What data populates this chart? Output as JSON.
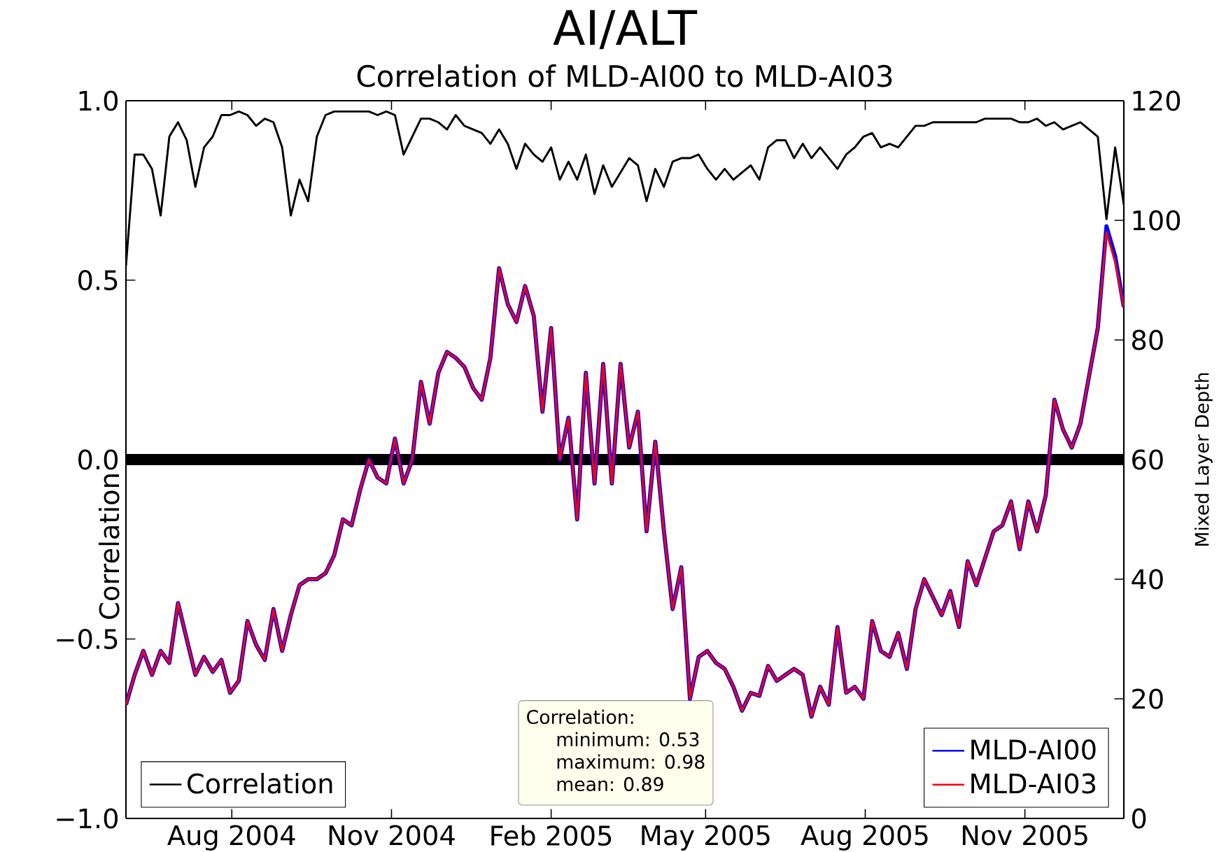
{
  "chart_data": {
    "type": "line",
    "title": "AI/ALT",
    "subtitle": "Correlation of MLD-AI00 to MLD-AI03",
    "ylabel": "Correlation",
    "y2label": "Mixed Layer Depth",
    "x": [
      "2004-06-01",
      "2004-06-06",
      "2004-06-11",
      "2004-06-16",
      "2004-06-21",
      "2004-06-26",
      "2004-07-01",
      "2004-07-06",
      "2004-07-11",
      "2004-07-16",
      "2004-07-21",
      "2004-07-26",
      "2004-07-31",
      "2004-08-05",
      "2004-08-10",
      "2004-08-15",
      "2004-08-20",
      "2004-08-25",
      "2004-08-30",
      "2004-09-04",
      "2004-09-09",
      "2004-09-14",
      "2004-09-19",
      "2004-09-24",
      "2004-09-29",
      "2004-10-04",
      "2004-10-09",
      "2004-10-14",
      "2004-10-19",
      "2004-10-24",
      "2004-10-29",
      "2004-11-03",
      "2004-11-08",
      "2004-11-13",
      "2004-11-18",
      "2004-11-23",
      "2004-11-28",
      "2004-12-03",
      "2004-12-08",
      "2004-12-13",
      "2004-12-18",
      "2004-12-23",
      "2004-12-28",
      "2005-01-02",
      "2005-01-07",
      "2005-01-12",
      "2005-01-17",
      "2005-01-22",
      "2005-01-27",
      "2005-02-01",
      "2005-02-06",
      "2005-02-11",
      "2005-02-16",
      "2005-02-21",
      "2005-02-26",
      "2005-03-03",
      "2005-03-08",
      "2005-03-13",
      "2005-03-18",
      "2005-03-23",
      "2005-03-28",
      "2005-04-02",
      "2005-04-07",
      "2005-04-12",
      "2005-04-17",
      "2005-04-22",
      "2005-04-27",
      "2005-05-02",
      "2005-05-07",
      "2005-05-12",
      "2005-05-17",
      "2005-05-22",
      "2005-05-27",
      "2005-06-01",
      "2005-06-06",
      "2005-06-11",
      "2005-06-16",
      "2005-06-21",
      "2005-06-26",
      "2005-07-01",
      "2005-07-06",
      "2005-07-11",
      "2005-07-16",
      "2005-07-21",
      "2005-07-26",
      "2005-07-31",
      "2005-08-05",
      "2005-08-10",
      "2005-08-15",
      "2005-08-20",
      "2005-08-25",
      "2005-08-30",
      "2005-09-04",
      "2005-09-09",
      "2005-09-14",
      "2005-09-19",
      "2005-09-24",
      "2005-09-29",
      "2005-10-04",
      "2005-10-09",
      "2005-10-14",
      "2005-10-19",
      "2005-10-24",
      "2005-10-29",
      "2005-11-03",
      "2005-11-08",
      "2005-11-13",
      "2005-11-18",
      "2005-11-23",
      "2005-11-28",
      "2005-12-03",
      "2005-12-08",
      "2005-12-13",
      "2005-12-18",
      "2005-12-23",
      "2005-12-28"
    ],
    "series": [
      {
        "name": "Correlation",
        "color": "#000000",
        "axis": "y",
        "values": [
          0.54,
          0.85,
          0.85,
          0.81,
          0.68,
          0.9,
          0.94,
          0.89,
          0.76,
          0.87,
          0.9,
          0.96,
          0.96,
          0.97,
          0.96,
          0.93,
          0.95,
          0.94,
          0.87,
          0.68,
          0.78,
          0.72,
          0.9,
          0.96,
          0.97,
          0.97,
          0.97,
          0.97,
          0.97,
          0.96,
          0.97,
          0.96,
          0.85,
          0.9,
          0.95,
          0.95,
          0.94,
          0.92,
          0.96,
          0.93,
          0.92,
          0.91,
          0.88,
          0.92,
          0.88,
          0.81,
          0.88,
          0.85,
          0.83,
          0.87,
          0.78,
          0.83,
          0.78,
          0.85,
          0.74,
          0.82,
          0.76,
          0.8,
          0.84,
          0.82,
          0.72,
          0.81,
          0.76,
          0.83,
          0.84,
          0.84,
          0.85,
          0.81,
          0.78,
          0.81,
          0.78,
          0.8,
          0.82,
          0.78,
          0.87,
          0.89,
          0.89,
          0.84,
          0.88,
          0.84,
          0.87,
          0.84,
          0.81,
          0.85,
          0.87,
          0.9,
          0.91,
          0.87,
          0.88,
          0.87,
          0.9,
          0.93,
          0.93,
          0.94,
          0.94,
          0.94,
          0.94,
          0.94,
          0.94,
          0.95,
          0.95,
          0.95,
          0.95,
          0.94,
          0.94,
          0.95,
          0.93,
          0.94,
          0.92,
          0.93,
          0.94,
          0.92,
          0.9,
          0.67,
          0.87,
          0.71
        ]
      },
      {
        "name": "MLD-AI00",
        "color": "#0000ff",
        "axis": "y2",
        "values": [
          19,
          24,
          28,
          24,
          28,
          26,
          36,
          30,
          24,
          27,
          24.5,
          26.5,
          21,
          23,
          33,
          29,
          26.5,
          35,
          28,
          34,
          39,
          40,
          40,
          41,
          44,
          50,
          49,
          55,
          60,
          57,
          56,
          63.5,
          56,
          60,
          73,
          66,
          74.5,
          78,
          77,
          75.5,
          72,
          70,
          77,
          92,
          86,
          83,
          89,
          84,
          68,
          82,
          60,
          67,
          50,
          74.5,
          56,
          76,
          56,
          76,
          62,
          68,
          48,
          63,
          48,
          35,
          42,
          20,
          27,
          28,
          26,
          25,
          22,
          18,
          21,
          20.5,
          25.5,
          23,
          24,
          25,
          24,
          17,
          22,
          19,
          32,
          21,
          22,
          20,
          33,
          28,
          27,
          31,
          25,
          35,
          40,
          37,
          34,
          38,
          32,
          43,
          39,
          43.5,
          48,
          49,
          53,
          45,
          53,
          48,
          54,
          70,
          65,
          62,
          66,
          74,
          82,
          99,
          94,
          85.5
        ]
      },
      {
        "name": "MLD-AI03",
        "color": "#ff0000",
        "axis": "y2",
        "values": [
          19,
          24,
          28,
          24,
          28,
          26,
          36,
          30,
          24,
          27,
          24.5,
          26.5,
          21,
          23,
          33,
          29,
          26.5,
          35,
          28,
          34,
          39,
          40,
          40,
          41,
          44,
          50,
          49,
          55,
          60,
          57,
          56,
          63.5,
          56,
          60,
          73,
          66,
          74.5,
          78,
          77,
          75.5,
          72,
          70,
          77,
          92,
          86,
          83,
          89,
          84,
          68,
          82,
          60,
          67,
          50,
          74.5,
          56,
          76,
          56,
          76,
          62,
          68,
          48,
          63,
          48,
          35,
          42,
          20,
          27,
          28,
          26,
          25,
          22,
          18,
          21,
          20.5,
          25.5,
          23,
          24,
          25,
          24,
          17,
          22,
          19,
          32,
          21,
          22,
          20,
          33,
          28,
          27,
          31,
          25,
          35,
          40,
          37,
          34,
          38,
          32,
          43,
          39,
          43.5,
          48,
          49,
          53,
          45,
          53,
          48,
          54,
          70,
          65,
          62,
          66,
          74,
          82,
          98,
          93,
          85.5
        ]
      }
    ],
    "xlim": [
      "2004-06-01",
      "2005-12-28"
    ],
    "xticks": [
      {
        "value": "2004-08-01",
        "label": "Aug 2004"
      },
      {
        "value": "2004-11-01",
        "label": "Nov 2004"
      },
      {
        "value": "2005-02-01",
        "label": "Feb 2005"
      },
      {
        "value": "2005-05-01",
        "label": "May 2005"
      },
      {
        "value": "2005-08-01",
        "label": "Aug 2005"
      },
      {
        "value": "2005-11-01",
        "label": "Nov 2005"
      }
    ],
    "ylim": [
      -1,
      1
    ],
    "yticks": [
      {
        "value": -1,
        "label": "−1.0"
      },
      {
        "value": -0.5,
        "label": "−0.5"
      },
      {
        "value": 0,
        "label": "0.0"
      },
      {
        "value": 0.5,
        "label": "0.5"
      },
      {
        "value": 1,
        "label": "1.0"
      }
    ],
    "y2lim": [
      0,
      120
    ],
    "y2ticks": [
      0,
      20,
      40,
      60,
      80,
      100,
      120
    ],
    "ref_lines": [
      {
        "axis": "y",
        "value": 0,
        "color": "#000000"
      }
    ],
    "annotations": [
      "Correlation:",
      "minimum: 0.53",
      "maximum: 0.98",
      "mean: 0.89"
    ],
    "legend": "bottom right",
    "grid": false
  }
}
